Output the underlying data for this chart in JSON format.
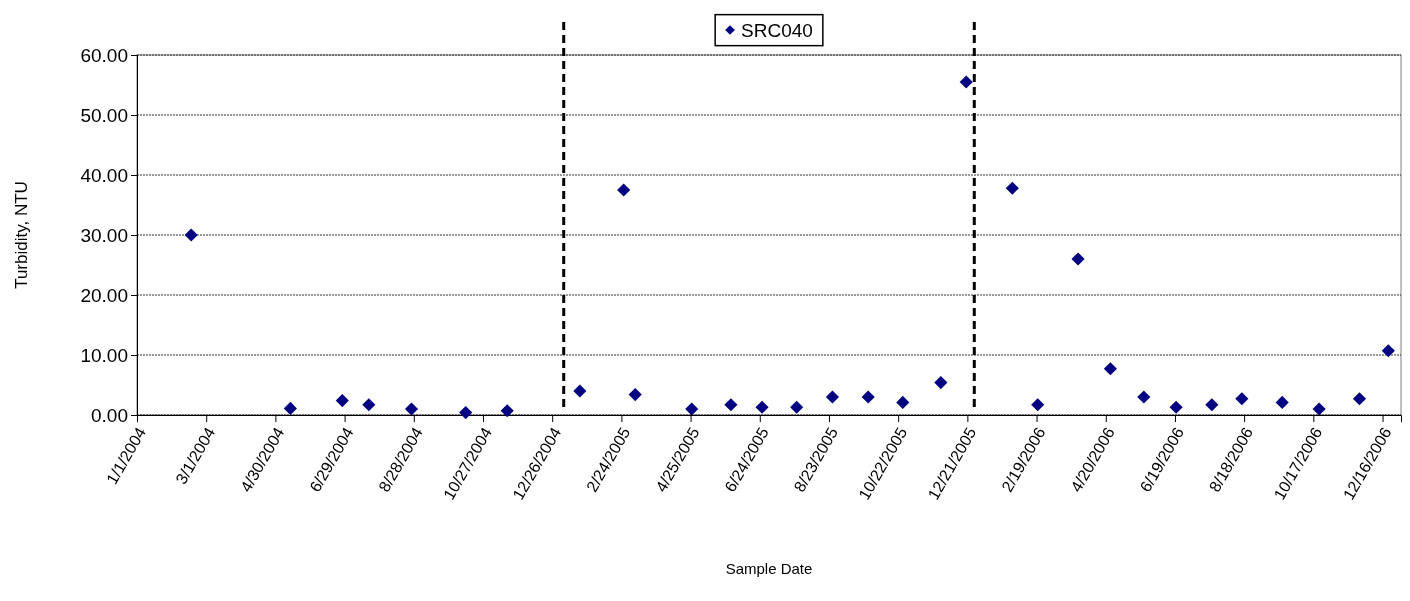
{
  "chart_data": {
    "type": "scatter",
    "xlabel": "Sample Date",
    "ylabel": "Turbidity, NTU",
    "xlim": [
      "2004-01-01",
      "2007-01-01"
    ],
    "xticks": [
      {
        "value": "2004-01-01",
        "label": "1/1/2004"
      },
      {
        "value": "2004-03-01",
        "label": "3/1/2004"
      },
      {
        "value": "2004-04-30",
        "label": "4/30/2004"
      },
      {
        "value": "2004-06-29",
        "label": "6/29/2004"
      },
      {
        "value": "2004-08-28",
        "label": "8/28/2004"
      },
      {
        "value": "2004-10-27",
        "label": "10/27/2004"
      },
      {
        "value": "2004-12-26",
        "label": "12/26/2004"
      },
      {
        "value": "2005-02-24",
        "label": "2/24/2005"
      },
      {
        "value": "2005-04-25",
        "label": "4/25/2005"
      },
      {
        "value": "2005-06-24",
        "label": "6/24/2005"
      },
      {
        "value": "2005-08-23",
        "label": "8/23/2005"
      },
      {
        "value": "2005-10-22",
        "label": "10/22/2005"
      },
      {
        "value": "2005-12-21",
        "label": "12/21/2005"
      },
      {
        "value": "2006-02-19",
        "label": "2/19/2006"
      },
      {
        "value": "2006-04-20",
        "label": "4/20/2006"
      },
      {
        "value": "2006-06-19",
        "label": "6/19/2006"
      },
      {
        "value": "2006-08-18",
        "label": "8/18/2006"
      },
      {
        "value": "2006-10-17",
        "label": "10/17/2006"
      },
      {
        "value": "2006-12-16",
        "label": "12/16/2006"
      }
    ],
    "ylim": [
      0,
      60
    ],
    "yticks": [
      {
        "value": 0,
        "label": "0.00"
      },
      {
        "value": 10,
        "label": "10.00"
      },
      {
        "value": 20,
        "label": "20.00"
      },
      {
        "value": 30,
        "label": "30.00"
      },
      {
        "value": 40,
        "label": "40.00"
      },
      {
        "value": 50,
        "label": "50.00"
      },
      {
        "value": 60,
        "label": "60.00"
      }
    ],
    "grid": "y",
    "legend": "top",
    "marker": "diamond",
    "x": [
      "2004-02-17",
      "2004-05-13",
      "2004-06-27",
      "2004-07-20",
      "2004-08-26",
      "2004-10-12",
      "2004-11-17",
      "2005-01-19",
      "2005-02-26",
      "2005-03-08",
      "2005-04-26",
      "2005-05-30",
      "2005-06-26",
      "2005-07-26",
      "2005-08-26",
      "2005-09-26",
      "2005-10-26",
      "2005-11-28",
      "2005-12-20",
      "2006-01-29",
      "2006-02-20",
      "2006-03-27",
      "2006-04-24",
      "2006-05-23",
      "2006-06-20",
      "2006-07-21",
      "2006-08-16",
      "2006-09-20",
      "2006-10-22",
      "2006-11-26",
      "2006-12-21"
    ],
    "series": [
      {
        "name": "SRC040",
        "color": "#000080",
        "values": [
          30.0,
          1.1,
          2.4,
          1.7,
          1.0,
          0.4,
          0.7,
          4.0,
          37.5,
          3.4,
          1.0,
          1.7,
          1.3,
          1.3,
          3.0,
          3.0,
          2.1,
          5.4,
          55.5,
          37.8,
          1.7,
          26.0,
          7.7,
          3.0,
          1.3,
          1.7,
          2.7,
          2.1,
          1.0,
          2.7,
          10.7
        ]
      }
    ],
    "ref_lines": [
      {
        "axis": "x",
        "value": "2005-01-05",
        "color": "#000000",
        "line_style": "dashed"
      },
      {
        "axis": "x",
        "value": "2005-12-27",
        "color": "#000000",
        "line_style": "dashed"
      }
    ]
  }
}
